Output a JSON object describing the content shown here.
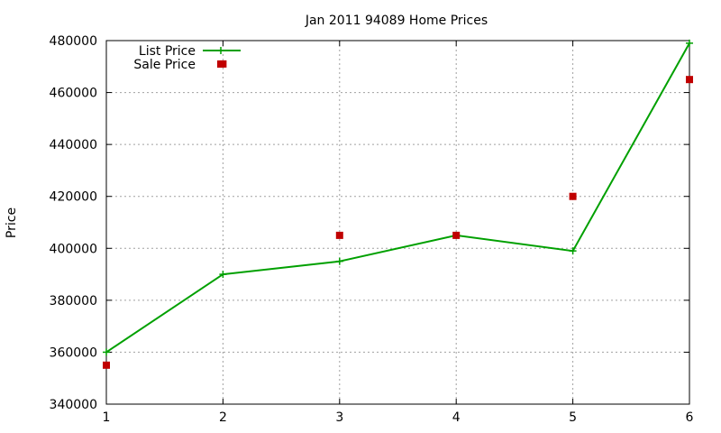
{
  "chart_data": {
    "type": "line",
    "title": "Jan 2011 94089 Home Prices",
    "xlabel": "",
    "ylabel": "Price",
    "x": [
      1,
      2,
      3,
      4,
      5,
      6
    ],
    "xlim": [
      1,
      6
    ],
    "ylim": [
      340000,
      480000
    ],
    "xticks": [
      1,
      2,
      3,
      4,
      5,
      6
    ],
    "yticks": [
      340000,
      360000,
      380000,
      400000,
      420000,
      440000,
      460000,
      480000
    ],
    "grid": true,
    "legend_position": "top-left",
    "series": [
      {
        "name": "List Price",
        "style": "line-with-plus-markers",
        "color": "#00a000",
        "values": [
          360000,
          390000,
          395000,
          405000,
          399000,
          479000
        ]
      },
      {
        "name": "Sale Price",
        "style": "square-markers",
        "color": "#c00000",
        "values": [
          355000,
          471000,
          405000,
          405000,
          420000,
          465000
        ]
      }
    ]
  }
}
